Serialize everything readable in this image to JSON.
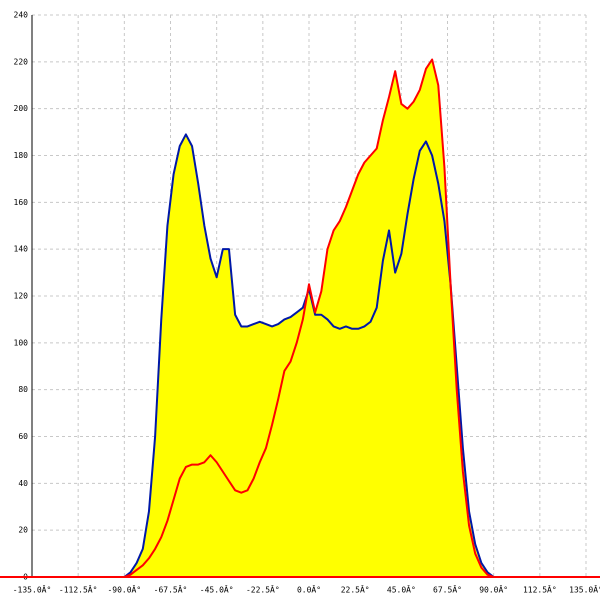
{
  "chart_data": {
    "type": "area",
    "x": [
      -90,
      -87,
      -84,
      -81,
      -78,
      -75,
      -72,
      -69,
      -66,
      -63,
      -60,
      -57,
      -54,
      -51,
      -48,
      -45,
      -42,
      -39,
      -36,
      -33,
      -30,
      -27,
      -24,
      -21,
      -18,
      -15,
      -12,
      -9,
      -6,
      -3,
      0,
      3,
      6,
      9,
      12,
      15,
      18,
      21,
      24,
      27,
      30,
      33,
      36,
      39,
      42,
      45,
      48,
      51,
      54,
      57,
      60,
      63,
      66,
      69,
      72,
      75,
      78,
      81,
      84,
      87,
      90
    ],
    "series": [
      {
        "color": "#0018a8",
        "values": [
          0,
          2,
          6,
          12,
          28,
          60,
          110,
          150,
          172,
          184,
          189,
          184,
          168,
          150,
          136,
          128,
          140,
          140,
          112,
          107,
          107,
          108,
          109,
          108,
          107,
          108,
          110,
          111,
          113,
          115,
          123,
          112,
          112,
          110,
          107,
          106,
          107,
          106,
          106,
          107,
          109,
          115,
          135,
          148,
          130,
          138,
          155,
          170,
          182,
          186,
          180,
          168,
          152,
          125,
          90,
          55,
          28,
          14,
          6,
          2,
          0
        ]
      },
      {
        "color": "#ff0000",
        "values": [
          0,
          1,
          3,
          5,
          8,
          12,
          17,
          24,
          33,
          42,
          47,
          48,
          48,
          49,
          52,
          49,
          45,
          41,
          37,
          36,
          37,
          42,
          49,
          55,
          65,
          76,
          88,
          92,
          100,
          110,
          125,
          113,
          122,
          140,
          148,
          152,
          158,
          165,
          172,
          177,
          180,
          183,
          195,
          205,
          216,
          202,
          200,
          203,
          208,
          217,
          221,
          210,
          175,
          125,
          80,
          45,
          22,
          10,
          4,
          1,
          0
        ]
      }
    ],
    "fill_color": "#ffff00",
    "xlim": [
      -135,
      135
    ],
    "xticks": [
      {
        "value": -135,
        "label": "-135.0Â°"
      },
      {
        "value": -112.5,
        "label": "-112.5Â°"
      },
      {
        "value": -90,
        "label": "-90.0Â°"
      },
      {
        "value": -67.5,
        "label": "-67.5Â°"
      },
      {
        "value": -45,
        "label": "-45.0Â°"
      },
      {
        "value": -22.5,
        "label": "-22.5Â°"
      },
      {
        "value": 0,
        "label": "0.0Â°"
      },
      {
        "value": 22.5,
        "label": "22.5Â°"
      },
      {
        "value": 45,
        "label": "45.0Â°"
      },
      {
        "value": 67.5,
        "label": "67.5Â°"
      },
      {
        "value": 90,
        "label": "90.0Â°"
      },
      {
        "value": 112.5,
        "label": "112.5Â°"
      },
      {
        "value": 135,
        "label": "135.0Â°"
      }
    ],
    "ylim": [
      0,
      240
    ],
    "yticks": [
      0,
      20,
      40,
      60,
      80,
      100,
      120,
      140,
      160,
      180,
      200,
      220,
      240
    ],
    "grid": true
  }
}
